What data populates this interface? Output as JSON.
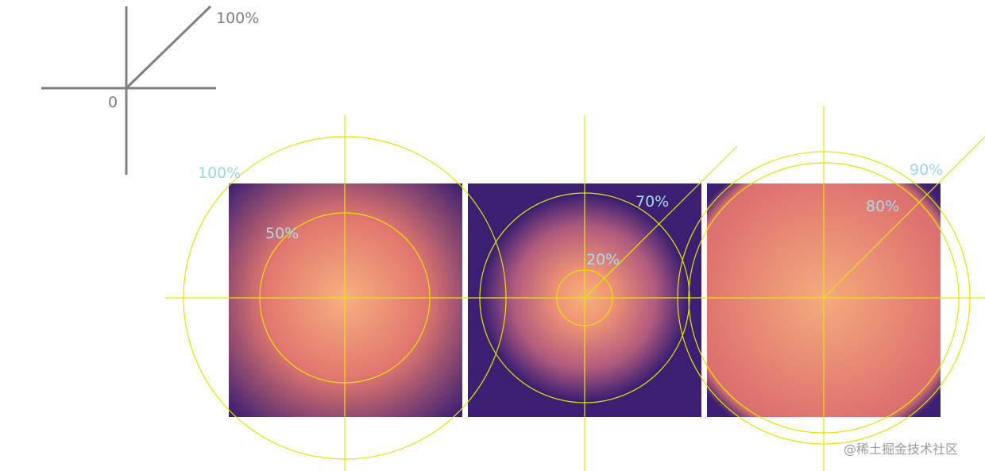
{
  "axis_key": {
    "label_100": "100%",
    "label_0": "0"
  },
  "panels": [
    {
      "id": "a",
      "stops": [
        "50%",
        "100%"
      ]
    },
    {
      "id": "b",
      "stops": [
        "20%",
        "70%"
      ]
    },
    {
      "id": "c",
      "stops": [
        "80%",
        "90%"
      ]
    }
  ],
  "watermark": "@稀土掘金技术社区",
  "colors": {
    "gradient_start": "#f5a97f",
    "gradient_mid": "#e07070",
    "gradient_end": "#3c1f72",
    "guide_line": "#e6e600",
    "axis_gray": "#808080",
    "label_cyan": "#9ad8ea"
  }
}
